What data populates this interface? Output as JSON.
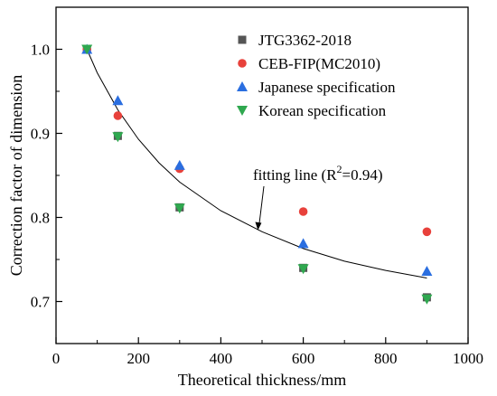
{
  "chart_data": {
    "type": "scatter",
    "xlabel": "Theoretical thickness/mm",
    "ylabel": "Correction factor of dimension",
    "xlim": [
      0,
      1000
    ],
    "ylim": [
      0.65,
      1.05
    ],
    "xticks": [
      0,
      200,
      400,
      600,
      800,
      1000
    ],
    "yticks": [
      0.7,
      0.8,
      0.9,
      1.0
    ],
    "xtick_labels": [
      "0",
      "200",
      "400",
      "600",
      "800",
      "1000"
    ],
    "ytick_labels": [
      "0.7",
      "0.8",
      "0.9",
      "1.0"
    ],
    "grid": false,
    "legend_position": "top-right",
    "series": [
      {
        "name": "JTG3362-2018",
        "marker": "square",
        "color": "#555555",
        "x": [
          75,
          150,
          300,
          600,
          900
        ],
        "y": [
          1.0,
          0.897,
          0.812,
          0.74,
          0.705
        ]
      },
      {
        "name": "CEB-FIP(MC2010)",
        "marker": "circle",
        "color": "#e8413b",
        "x": [
          75,
          150,
          300,
          600,
          900
        ],
        "y": [
          1.0,
          0.921,
          0.858,
          0.807,
          0.783
        ]
      },
      {
        "name": "Japanese specification",
        "marker": "triangle-up",
        "color": "#2a6ee0",
        "x": [
          75,
          150,
          300,
          600,
          900
        ],
        "y": [
          1.0,
          0.939,
          0.862,
          0.769,
          0.736
        ]
      },
      {
        "name": "Korean specification",
        "marker": "triangle-down",
        "color": "#2fa84f",
        "x": [
          75,
          150,
          300,
          600,
          900
        ],
        "y": [
          1.0,
          0.896,
          0.811,
          0.739,
          0.703
        ]
      }
    ],
    "fit_line": {
      "x": [
        75,
        100,
        150,
        200,
        250,
        300,
        400,
        500,
        600,
        700,
        800,
        900
      ],
      "y": [
        1.0,
        0.972,
        0.928,
        0.893,
        0.865,
        0.842,
        0.808,
        0.783,
        0.763,
        0.748,
        0.737,
        0.728
      ]
    },
    "annotation": {
      "text_prefix": "fitting line (R",
      "superscript": "2",
      "text_suffix": "=0.94)",
      "arrow_target": {
        "x": 490,
        "y": 0.785
      }
    }
  }
}
